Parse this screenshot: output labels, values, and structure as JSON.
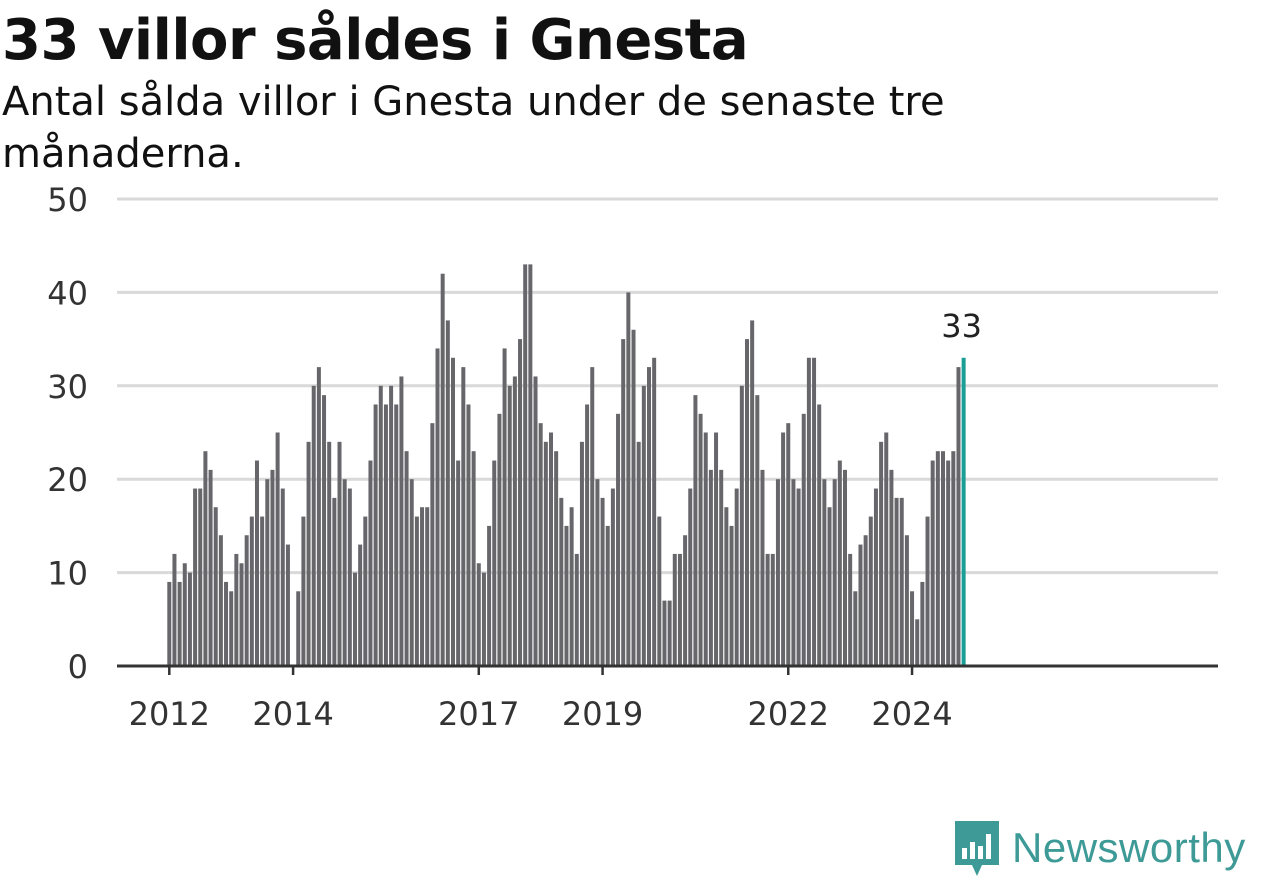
{
  "title": "33 villor såldes i Gnesta",
  "subtitle": "Antal sålda villor i Gnesta under de senaste tre månaderna.",
  "brand": "Newsworthy",
  "colors": {
    "bar": "#67666b",
    "highlight": "#1a9e96",
    "grid": "#d9d9d9",
    "axis": "#333333",
    "brand": "#3d9a96"
  },
  "chart_data": {
    "type": "bar",
    "title": "33 villor såldes i Gnesta",
    "subtitle": "Antal sålda villor i Gnesta under de senaste tre månaderna.",
    "start_month": "2012-01",
    "frequency": "monthly",
    "ylim": [
      0,
      50
    ],
    "yticks": [
      0,
      10,
      20,
      30,
      40,
      50
    ],
    "xticks": [
      "2012",
      "2014",
      "2017",
      "2019",
      "2022",
      "2024"
    ],
    "grid": true,
    "highlight_label": "33",
    "values": [
      9,
      12,
      9,
      11,
      10,
      19,
      19,
      23,
      21,
      17,
      14,
      9,
      8,
      12,
      11,
      14,
      16,
      22,
      16,
      20,
      21,
      25,
      19,
      13,
      null,
      8,
      16,
      24,
      30,
      32,
      29,
      24,
      18,
      24,
      20,
      19,
      10,
      13,
      16,
      22,
      28,
      30,
      28,
      30,
      28,
      31,
      23,
      20,
      16,
      17,
      17,
      26,
      34,
      42,
      37,
      33,
      22,
      32,
      28,
      23,
      11,
      10,
      15,
      22,
      27,
      34,
      30,
      31,
      35,
      43,
      43,
      31,
      26,
      24,
      25,
      23,
      18,
      15,
      17,
      12,
      24,
      28,
      32,
      20,
      18,
      15,
      19,
      27,
      35,
      40,
      36,
      24,
      30,
      32,
      33,
      16,
      7,
      7,
      12,
      12,
      14,
      19,
      29,
      27,
      25,
      21,
      25,
      21,
      17,
      15,
      19,
      30,
      35,
      37,
      29,
      21,
      12,
      12,
      20,
      25,
      26,
      20,
      19,
      27,
      33,
      33,
      28,
      20,
      17,
      20,
      22,
      21,
      12,
      8,
      13,
      14,
      16,
      19,
      24,
      25,
      21,
      18,
      18,
      14,
      8,
      5,
      9,
      16,
      22,
      23,
      23,
      22,
      23,
      32,
      33
    ]
  }
}
